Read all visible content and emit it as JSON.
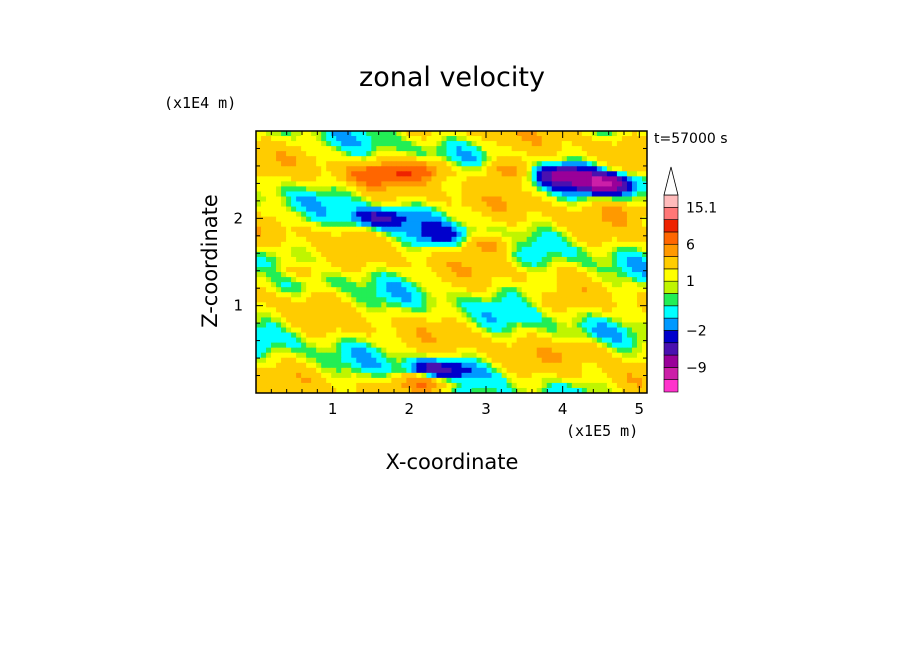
{
  "chart_data": {
    "type": "heatmap",
    "title": "zonal velocity",
    "xlabel": "X-coordinate",
    "ylabel": "Z-coordinate",
    "x_unit": "(x1E5 m)",
    "y_unit": "(x1E4 m)",
    "time_label": "t=57000 s",
    "xlim": [
      0,
      5.1
    ],
    "ylim": [
      0,
      3.0
    ],
    "x_ticks": [
      "1",
      "2",
      "3",
      "4",
      "5"
    ],
    "x_tick_values": [
      1,
      2,
      3,
      4,
      5
    ],
    "y_ticks": [
      "1",
      "2"
    ],
    "y_tick_values": [
      1,
      2
    ],
    "colorbar": {
      "labels": [
        "15.1",
        "6",
        "1",
        "−2",
        "−9"
      ],
      "label_values": [
        15.1,
        6,
        1,
        -2,
        -9
      ],
      "levels": [
        -12,
        -9,
        -6,
        -4,
        -2,
        -1,
        0,
        0.5,
        1,
        2,
        4,
        6,
        9,
        12,
        15.1
      ],
      "colors": [
        "#ff33cc",
        "#cc1fa8",
        "#990099",
        "#4a10b0",
        "#0000cc",
        "#0099ff",
        "#00ffff",
        "#22ee55",
        "#bff500",
        "#ffff00",
        "#ffcc00",
        "#ff9900",
        "#ff6600",
        "#ee2200",
        "#ff7777",
        "#ffbbbb"
      ],
      "extend_max": true
    },
    "features": [
      {
        "x": 1.55,
        "z": 2.5,
        "u": 5
      },
      {
        "x": 2.15,
        "z": 2.55,
        "u": 6
      },
      {
        "x": 3.3,
        "z": 2.55,
        "u": 4
      },
      {
        "x": 4.0,
        "z": 2.5,
        "u": -6
      },
      {
        "x": 4.55,
        "z": 2.4,
        "u": -10
      },
      {
        "x": 4.9,
        "z": 2.1,
        "u": 2
      },
      {
        "x": 1.6,
        "z": 2.0,
        "u": -5
      },
      {
        "x": 2.4,
        "z": 1.8,
        "u": -3
      },
      {
        "x": 3.1,
        "z": 1.7,
        "u": 3.5
      },
      {
        "x": 0.5,
        "z": 1.4,
        "u": 3
      },
      {
        "x": 3.7,
        "z": 1.2,
        "u": -1.5
      },
      {
        "x": 2.35,
        "z": 0.25,
        "u": -8
      },
      {
        "x": 2.25,
        "z": 0.15,
        "u": 7
      },
      {
        "x": 4.3,
        "z": 0.5,
        "u": 2
      }
    ]
  }
}
